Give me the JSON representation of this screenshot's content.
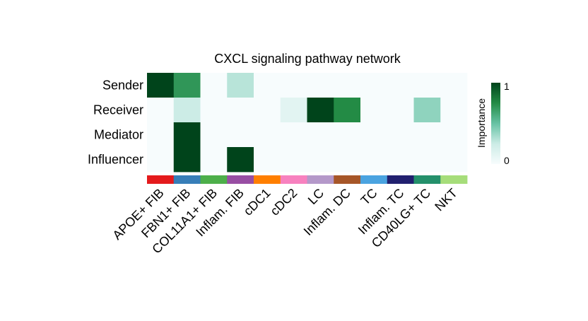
{
  "chart_data": {
    "type": "heatmap",
    "title": "CXCL signaling pathway network",
    "rows": [
      "Sender",
      "Receiver",
      "Mediator",
      "Influencer"
    ],
    "columns": [
      "APOE+ FIB",
      "FBN1+ FIB",
      "COL11A1+ FIB",
      "Inflam. FIB",
      "cDC1",
      "cDC2",
      "LC",
      "Inflam. DC",
      "TC",
      "Inflam. TC",
      "CD40LG+ TC",
      "NKT"
    ],
    "values": [
      [
        1.0,
        0.7,
        0.0,
        0.3,
        0.0,
        0.0,
        0.0,
        0.0,
        0.0,
        0.0,
        0.0,
        0.0
      ],
      [
        0.0,
        0.25,
        0.0,
        0.0,
        0.0,
        0.12,
        1.0,
        0.75,
        0.0,
        0.0,
        0.4,
        0.0
      ],
      [
        0.0,
        1.0,
        0.0,
        0.0,
        0.0,
        0.0,
        0.0,
        0.0,
        0.0,
        0.0,
        0.0,
        0.0
      ],
      [
        0.0,
        1.0,
        0.0,
        1.0,
        0.0,
        0.0,
        0.0,
        0.0,
        0.0,
        0.0,
        0.0,
        0.0
      ]
    ],
    "column_colors": [
      "#E41A1C",
      "#377EB8",
      "#4DAF4A",
      "#984EA3",
      "#FF7F00",
      "#F781BF",
      "#B498C9",
      "#A65628",
      "#4AA3E0",
      "#21206F",
      "#24906B",
      "#A6DD7A"
    ],
    "legend": {
      "title": "Importance",
      "min_label": "0",
      "max_label": "1",
      "min_color": "#F7FCFD",
      "max_color": "#00441B"
    }
  }
}
